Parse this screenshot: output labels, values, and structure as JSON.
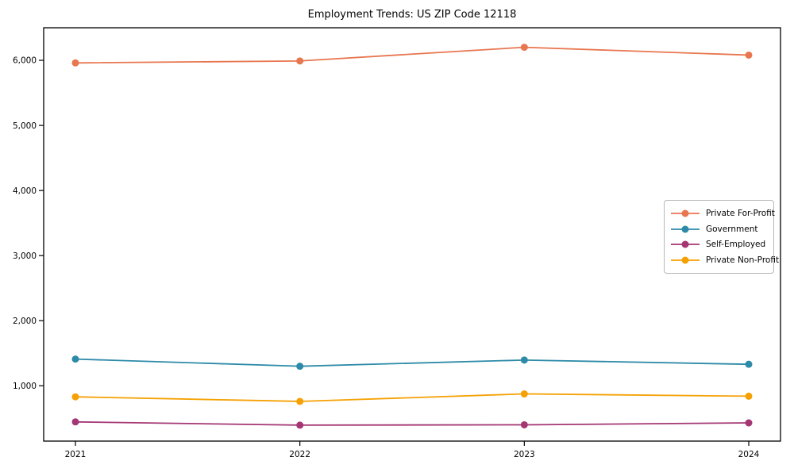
{
  "chart_data": {
    "type": "line",
    "title": "Employment Trends: US ZIP Code 12118",
    "x": [
      "2021",
      "2022",
      "2023",
      "2024"
    ],
    "series": [
      {
        "name": "Private For-Profit",
        "color": "#e8764f",
        "values": [
          5960,
          5990,
          6200,
          6080
        ]
      },
      {
        "name": "Government",
        "color": "#2d8aa8",
        "values": [
          1410,
          1300,
          1395,
          1330
        ]
      },
      {
        "name": "Self-Employed",
        "color": "#a43673",
        "values": [
          445,
          395,
          400,
          430
        ]
      },
      {
        "name": "Private Non-Profit",
        "color": "#f5a104",
        "values": [
          830,
          760,
          875,
          840
        ]
      }
    ],
    "xlabel": "",
    "ylabel": "",
    "ylim": [
      150,
      6500
    ],
    "yticks": [
      1000,
      2000,
      3000,
      4000,
      5000,
      6000
    ],
    "grid": false,
    "legend_position": "center-right",
    "marker": "circle",
    "axis_color": "#000000"
  }
}
